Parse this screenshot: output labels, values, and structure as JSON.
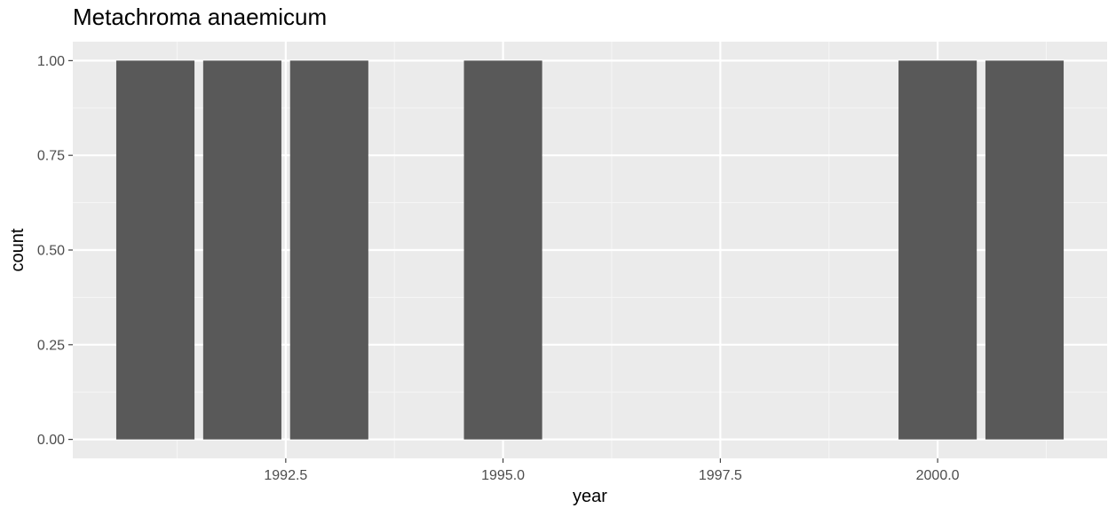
{
  "chart_data": {
    "type": "bar",
    "title": "Metachroma anaemicum",
    "xlabel": "year",
    "ylabel": "count",
    "x": [
      1991,
      1992,
      1993,
      1995,
      2000,
      2001
    ],
    "values": [
      1,
      1,
      1,
      1,
      1,
      1
    ],
    "xlim": [
      1990.05,
      2001.95
    ],
    "ylim": [
      -0.05,
      1.05
    ],
    "x_ticks": [
      1992.5,
      1995.0,
      1997.5,
      2000.0
    ],
    "x_tick_labels": [
      "1992.5",
      "1995.0",
      "1997.5",
      "2000.0"
    ],
    "y_ticks": [
      0,
      0.25,
      0.5,
      0.75,
      1.0
    ],
    "y_tick_labels": [
      "0.00",
      "0.25",
      "0.50",
      "0.75",
      "1.00"
    ],
    "grid": true,
    "colors": {
      "bar": "#595959",
      "panel": "#ebebeb",
      "grid_major": "#ffffff",
      "grid_minor": "#f5f5f5",
      "tick_text": "#4d4d4d"
    }
  }
}
